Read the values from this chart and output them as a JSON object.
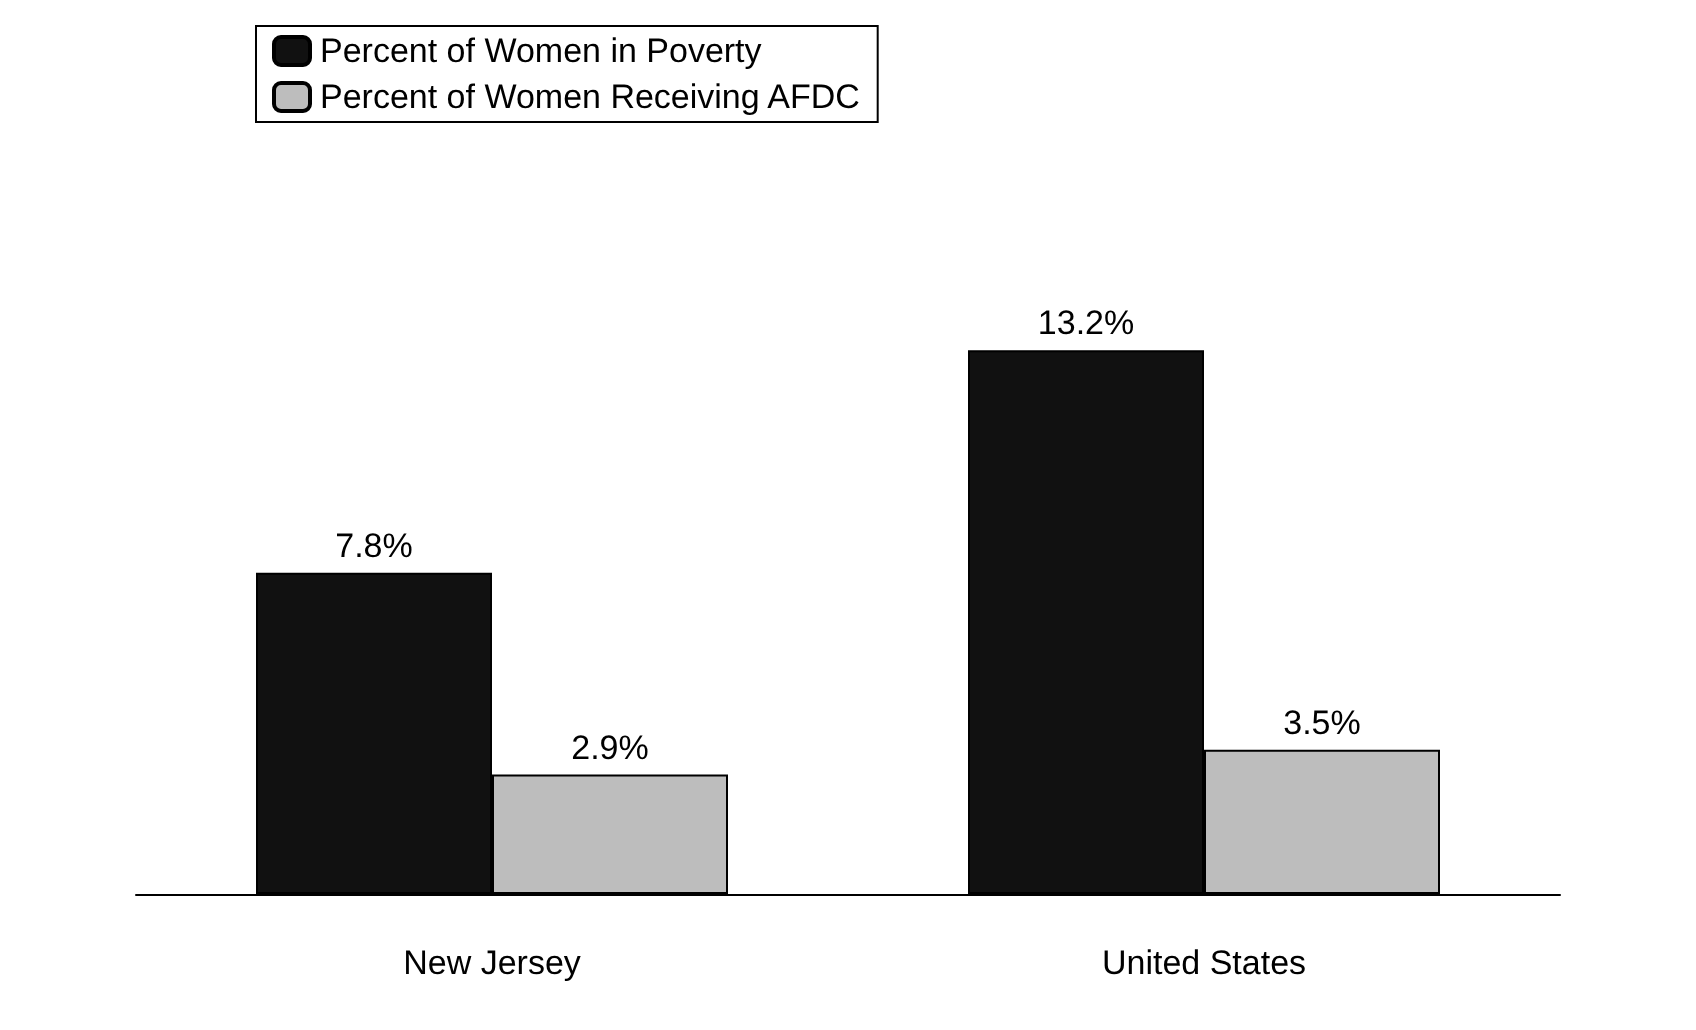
{
  "chart_data": {
    "type": "bar",
    "categories": [
      "New Jersey",
      "United States"
    ],
    "series": [
      {
        "name": "Percent of Women in Poverty",
        "color": "#111111",
        "values": [
          7.8,
          13.2
        ],
        "value_labels": [
          "7.8%",
          "13.2%"
        ]
      },
      {
        "name": "Percent of Women Receiving AFDC",
        "color": "#bdbdbd",
        "values": [
          2.9,
          3.5
        ],
        "value_labels": [
          "2.9%",
          "3.5%"
        ]
      }
    ],
    "legend": "top left"
  }
}
